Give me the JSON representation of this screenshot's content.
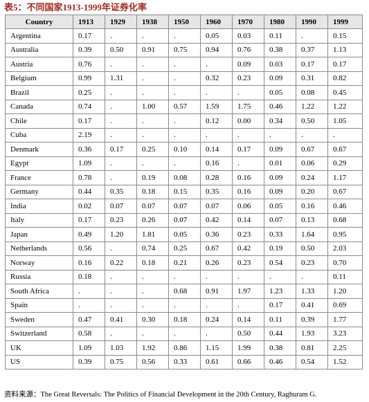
{
  "title": "表5：不同国家1913-1999年证券化率",
  "table": {
    "headers": [
      "Country",
      "1913",
      "1929",
      "1938",
      "1950",
      "1960",
      "1970",
      "1980",
      "1990",
      "1999"
    ],
    "rows": [
      [
        "Argentina",
        "0.17",
        ".",
        ".",
        ".",
        "0.05",
        "0.03",
        "0.11",
        ".",
        "0.15"
      ],
      [
        "Australia",
        "0.39",
        "0.50",
        "0.91",
        "0.75",
        "0.94",
        "0.76",
        "0.38",
        "0.37",
        "1.13"
      ],
      [
        "Austria",
        "0.76",
        ".",
        ".",
        ".",
        ".",
        "0.09",
        "0.03",
        "0.17",
        "0.17"
      ],
      [
        "Belgium",
        "0.99",
        "1.31",
        ".",
        ".",
        "0.32",
        "0.23",
        "0.09",
        "0.31",
        "0.82"
      ],
      [
        "Brazil",
        "0.25",
        ".",
        ".",
        ".",
        ".",
        ".",
        "0.05",
        "0.08",
        "0.45"
      ],
      [
        "Canada",
        "0.74",
        ".",
        "1.00",
        "0.57",
        "1.59",
        "1.75",
        "0.46",
        "1.22",
        "1.22"
      ],
      [
        "Chile",
        "0.17",
        ".",
        ".",
        ".",
        "0.12",
        "0.00",
        "0.34",
        "0.50",
        "1.05"
      ],
      [
        "Cuba",
        "2.19",
        ".",
        ".",
        ".",
        ".",
        ".",
        ".",
        ".",
        "."
      ],
      [
        "Denmark",
        "0.36",
        "0.17",
        "0.25",
        "0.10",
        "0.14",
        "0.17",
        "0.09",
        "0.67",
        "0.67"
      ],
      [
        "Egypt",
        "1.09",
        ".",
        ".",
        ".",
        "0.16",
        ".",
        "0.01",
        "0.06",
        "0.29"
      ],
      [
        "France",
        "0.78",
        ".",
        "0.19",
        "0.08",
        "0.28",
        "0.16",
        "0.09",
        "0.24",
        "1.17"
      ],
      [
        "Germany",
        "0.44",
        "0.35",
        "0.18",
        "0.15",
        "0.35",
        "0.16",
        "0.09",
        "0.20",
        "0.67"
      ],
      [
        "India",
        "0.02",
        "0.07",
        "0.07",
        "0.07",
        "0.07",
        "0.06",
        "0.05",
        "0.16",
        "0.46"
      ],
      [
        "Italy",
        "0.17",
        "0.23",
        "0.26",
        "0.07",
        "0.42",
        "0.14",
        "0.07",
        "0.13",
        "0.68"
      ],
      [
        "Japan",
        "0.49",
        "1.20",
        "1.81",
        "0.05",
        "0.36",
        "0.23",
        "0.33",
        "1.64",
        "0.95"
      ],
      [
        "Netherlands",
        "0.56",
        ".",
        "0.74",
        "0.25",
        "0.67",
        "0.42",
        "0.19",
        "0.50",
        "2.03"
      ],
      [
        "Norway",
        "0.16",
        "0.22",
        "0.18",
        "0.21",
        "0.26",
        "0.23",
        "0.54",
        "0.23",
        "0.70"
      ],
      [
        "Russia",
        "0.18",
        ".",
        ".",
        ".",
        ".",
        ".",
        ".",
        ".",
        "0.11"
      ],
      [
        "South Africa",
        ".",
        ".",
        ".",
        "0.68",
        "0.91",
        "1.97",
        "1.23",
        "1.33",
        "1.20"
      ],
      [
        "Spain",
        ".",
        ".",
        ".",
        ".",
        ".",
        ".",
        "0.17",
        "0.41",
        "0.69"
      ],
      [
        "Sweden",
        "0.47",
        "0.41",
        "0.30",
        "0.18",
        "0.24",
        "0.14",
        "0.11",
        "0.39",
        "1.77"
      ],
      [
        "Switzerland",
        "0.58",
        ".",
        ".",
        ".",
        ".",
        "0.50",
        "0.44",
        "1.93",
        "3.23"
      ],
      [
        "UK",
        "1.09",
        "1.03",
        "1.92",
        "0.86",
        "1.15",
        "1.99",
        "0.38",
        "0.81",
        "2.25"
      ],
      [
        "US",
        "0.39",
        "0.75",
        "0.56",
        "0.33",
        "0.61",
        "0.66",
        "0.46",
        "0.54",
        "1.52"
      ]
    ]
  },
  "footer": "资料来源：The Great Reversals: The Politics of Financial Development in the 20th Century, Raghuram G."
}
